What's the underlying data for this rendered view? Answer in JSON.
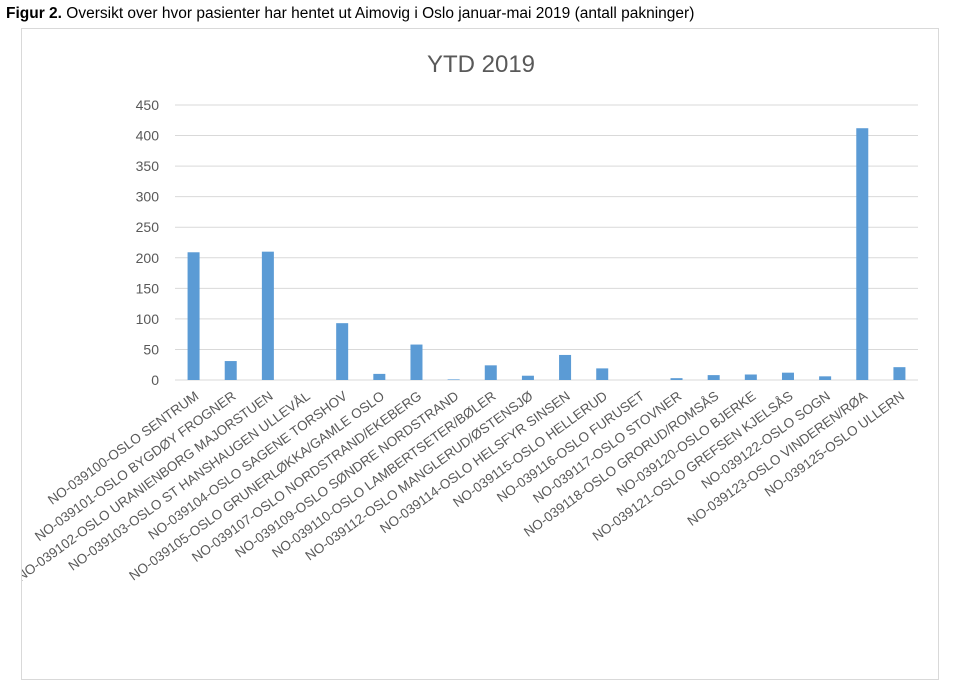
{
  "caption": {
    "label": "Figur 2.",
    "text": " Oversikt over hvor pasienter har hentet ut Aimovig i Oslo januar-mai 2019 (antall pakninger)"
  },
  "chart_data": {
    "type": "bar",
    "title": "YTD 2019",
    "xlabel": "",
    "ylabel": "",
    "ylim": [
      0,
      450
    ],
    "yticks": [
      0,
      50,
      100,
      150,
      200,
      250,
      300,
      350,
      400,
      450
    ],
    "grid": true,
    "legend": "none",
    "bar_color": "#5b9bd5",
    "categories": [
      "NO-039100-OSLO SENTRUM",
      "NO-039101-OSLO BYGDØY FROGNER",
      "NO-039102-OSLO URANIENBORG MAJORSTUEN",
      "NO-039103-OSLO ST HANSHAUGEN ULLEVÅL",
      "NO-039104-OSLO SAGENE TORSHOV",
      "NO-039105-OSLO GRUNERLØKKA/GAMLE OSLO",
      "NO-039107-OSLO NORDSTRAND/EKEBERG",
      "NO-039109-OSLO SØNDRE NORDSTRAND",
      "NO-039110-OSLO LAMBERTSETER/BØLER",
      "NO-039112-OSLO MANGLERUD/ØSTENSJØ",
      "NO-039114-OSLO HELSFYR SINSEN",
      "NO-039115-OSLO HELLERUD",
      "NO-039116-OSLO FURUSET",
      "NO-039117-OSLO STOVNER",
      "NO-039118-OSLO GRORUD/ROMSÅS",
      "NO-039120-OSLO BJERKE",
      "NO-039121-OSLO GREFSEN KJELSÅS",
      "NO-039122-OSLO SOGN",
      "NO-039123-OSLO VINDEREN/RØA",
      "NO-039125-OSLO ULLERN"
    ],
    "values": [
      209,
      31,
      210,
      0,
      93,
      10,
      58,
      1,
      24,
      7,
      41,
      19,
      0,
      3,
      8,
      9,
      12,
      6,
      412,
      21
    ]
  }
}
